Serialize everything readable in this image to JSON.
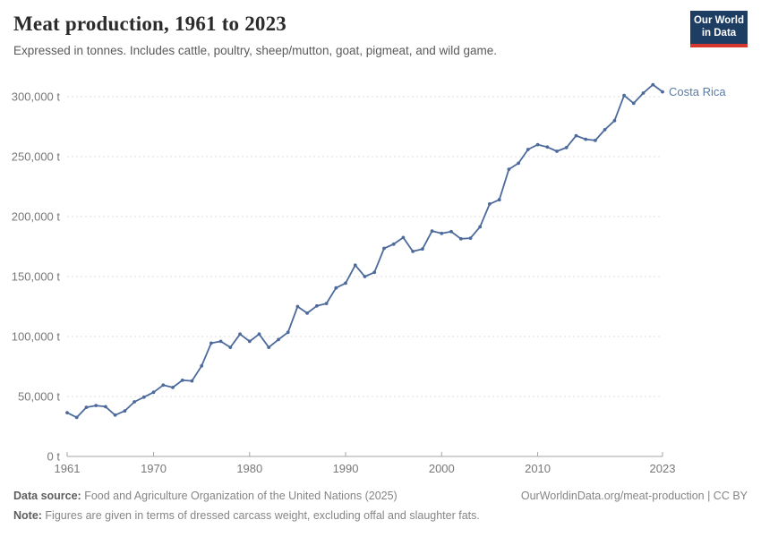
{
  "header": {
    "title": "Meat production, 1961 to 2023",
    "subtitle": "Expressed in tonnes. Includes cattle, poultry, sheep/mutton, goat, pigmeat, and wild game.",
    "logo_line1": "Our World",
    "logo_line2": "in Data"
  },
  "chart_data": {
    "type": "line",
    "title": "Meat production, 1961 to 2023",
    "unit": "tonnes",
    "grid": "horizontal-dashed",
    "legend_position": "end-of-line-label",
    "xlabel": "",
    "ylabel": "",
    "ylim": [
      0,
      300000
    ],
    "xlim": [
      1961,
      2023
    ],
    "x_ticks": [
      "1961",
      "1970",
      "1980",
      "1990",
      "2000",
      "2010",
      "2023"
    ],
    "x_tick_years": [
      1961,
      1970,
      1980,
      1990,
      2000,
      2010,
      2023
    ],
    "y_ticks": [
      {
        "value": 0,
        "label": "0 t"
      },
      {
        "value": 50000,
        "label": "50,000 t"
      },
      {
        "value": 100000,
        "label": "100,000 t"
      },
      {
        "value": 150000,
        "label": "150,000 t"
      },
      {
        "value": 200000,
        "label": "200,000 t"
      },
      {
        "value": 250000,
        "label": "250,000 t"
      },
      {
        "value": 300000,
        "label": "300,000 t"
      }
    ],
    "x": [
      1961,
      1962,
      1963,
      1964,
      1965,
      1966,
      1967,
      1968,
      1969,
      1970,
      1971,
      1972,
      1973,
      1974,
      1975,
      1976,
      1977,
      1978,
      1979,
      1980,
      1981,
      1982,
      1983,
      1984,
      1985,
      1986,
      1987,
      1988,
      1989,
      1990,
      1991,
      1992,
      1993,
      1994,
      1995,
      1996,
      1997,
      1998,
      1999,
      2000,
      2001,
      2002,
      2003,
      2004,
      2005,
      2006,
      2007,
      2008,
      2009,
      2010,
      2011,
      2012,
      2013,
      2014,
      2015,
      2016,
      2017,
      2018,
      2019,
      2020,
      2021,
      2022,
      2023
    ],
    "series": [
      {
        "name": "Costa Rica",
        "color": "#4c6a9c",
        "values": [
          36500,
          32500,
          41000,
          42500,
          41500,
          34500,
          38000,
          45500,
          49500,
          53500,
          59500,
          57500,
          63500,
          63000,
          75500,
          94500,
          96000,
          91000,
          102000,
          96000,
          102000,
          91000,
          97500,
          103500,
          125000,
          119500,
          125500,
          127500,
          140500,
          144500,
          159500,
          150000,
          153500,
          173500,
          177000,
          182500,
          171000,
          173000,
          188000,
          186000,
          187500,
          181500,
          182000,
          191500,
          210500,
          214000,
          239500,
          244500,
          256000,
          260000,
          258000,
          254500,
          257500,
          267500,
          264500,
          263500,
          272500,
          280000,
          301000,
          294500,
          303000,
          310000,
          304000
        ]
      }
    ],
    "end_label": "Costa Rica"
  },
  "footer": {
    "source_label": "Data source:",
    "source_text": " Food and Agriculture Organization of the United Nations (2025)",
    "attribution": "OurWorldinData.org/meat-production | CC BY",
    "note_label": "Note:",
    "note_text": " Figures are given in terms of dressed carcass weight, excluding offal and slaughter fats."
  },
  "colors": {
    "line": "#4c6a9c",
    "entity_label": "#5b7ba6",
    "gridline": "#dcdcdc",
    "axis": "#a5a5a5",
    "tick_text": "#787878",
    "logo_bg": "#1d3d63",
    "logo_red": "#d5372d"
  }
}
